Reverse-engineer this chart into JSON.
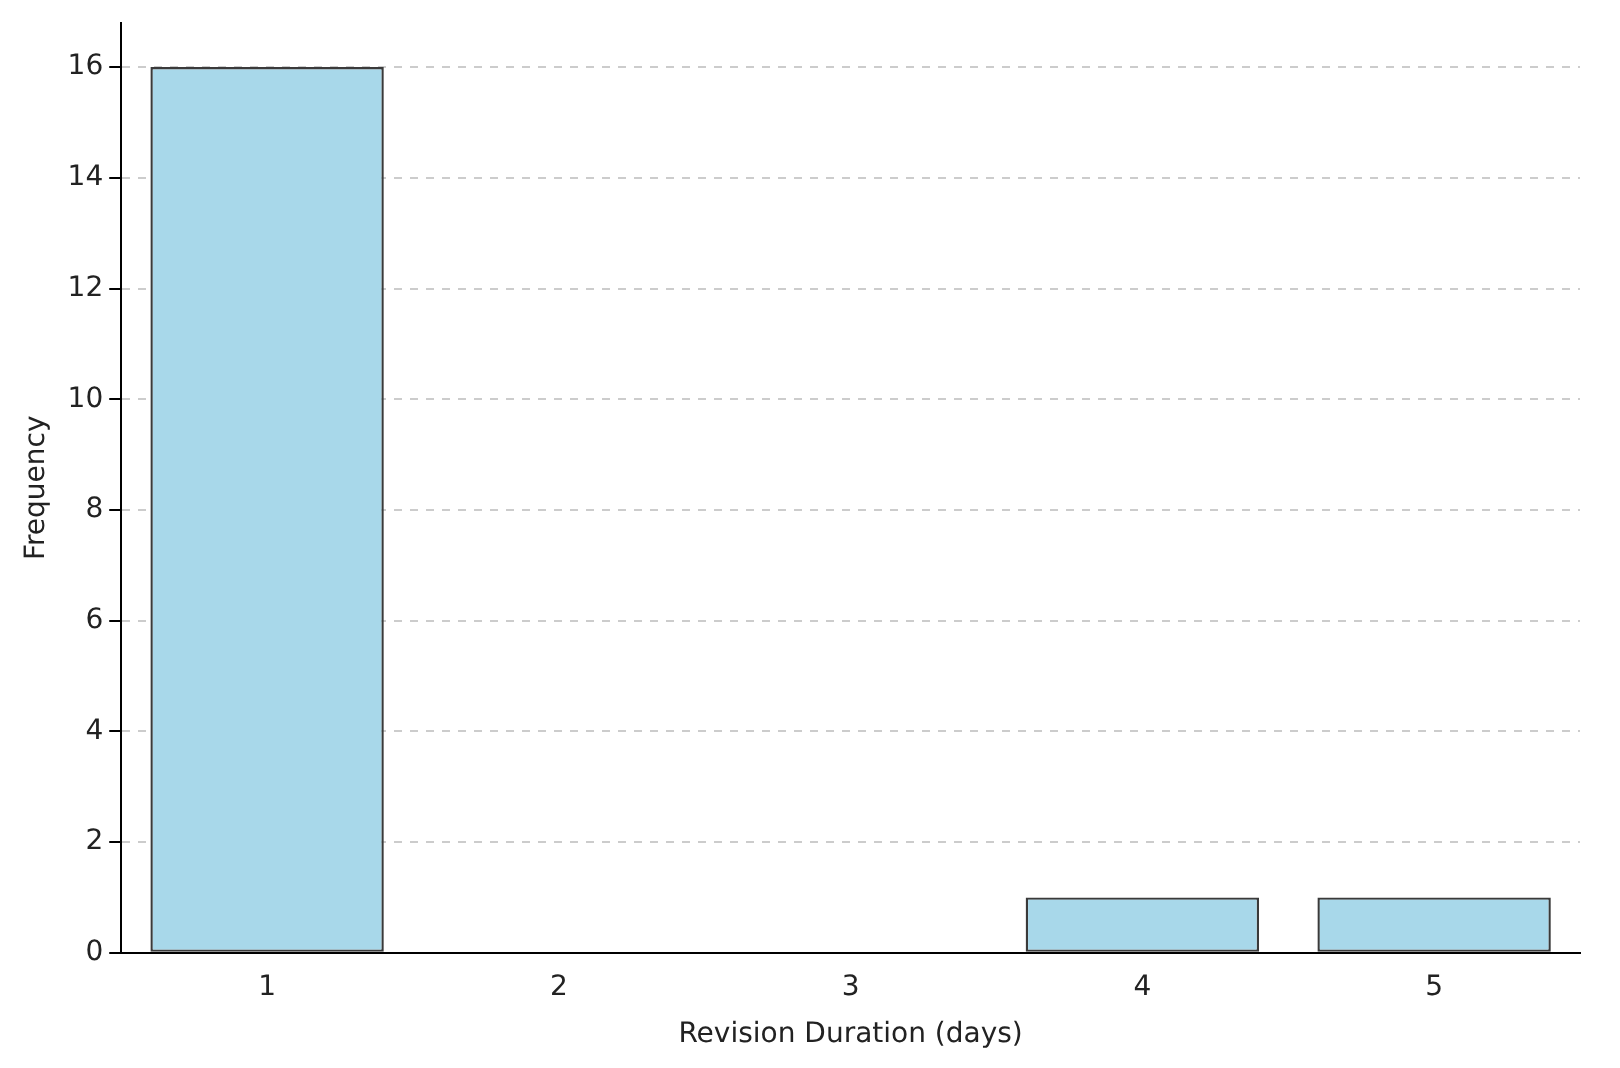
{
  "chart_data": {
    "type": "bar",
    "xlabel": "Revision Duration (days)",
    "ylabel": "Frequency",
    "categories": [
      "1",
      "2",
      "3",
      "4",
      "5"
    ],
    "values": [
      16,
      0,
      0,
      1,
      1
    ],
    "color": "#a8d8ea",
    "ylim": [
      0,
      16.8
    ],
    "yticks": [
      0,
      2,
      4,
      6,
      8,
      10,
      12,
      14,
      16
    ],
    "grid": "y",
    "line_style": "dashed"
  }
}
